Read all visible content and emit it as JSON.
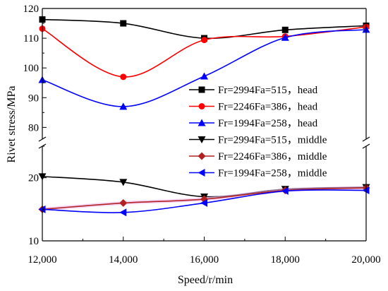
{
  "chart_data": {
    "type": "line",
    "title": "",
    "xlabel": "Speed/r/min",
    "ylabel": "Rivet stress/MPa",
    "x": [
      12000,
      14000,
      16000,
      18000,
      20000
    ],
    "x_tick_labels": [
      "12,000",
      "14,000",
      "16,000",
      "18,000",
      "20,000"
    ],
    "xlim": [
      12000,
      20000
    ],
    "y_axis_broken": true,
    "y_segments": [
      {
        "range": [
          10,
          25
        ],
        "ticks": [
          "10",
          "20"
        ]
      },
      {
        "range": [
          77,
          120
        ],
        "ticks": [
          "80",
          "90",
          "100",
          "110",
          "120"
        ]
      }
    ],
    "grid": false,
    "legend_position": "right",
    "series": [
      {
        "name": "Fr=2994Fa=515，head",
        "color": "#000000",
        "marker": "square",
        "values": [
          116.3,
          115.0,
          110.0,
          112.8,
          114.2
        ]
      },
      {
        "name": "Fr=2246Fa=386，head",
        "color": "#ff0000",
        "marker": "circle",
        "values": [
          113.2,
          97.0,
          109.4,
          110.6,
          113.8
        ]
      },
      {
        "name": "Fr=1994Fa=258，head",
        "color": "#0000ff",
        "marker": "triangle-up",
        "values": [
          96.0,
          87.0,
          97.2,
          110.2,
          112.9
        ]
      },
      {
        "name": "Fr=2994Fa=515，middle",
        "color": "#000000",
        "marker": "triangle-down",
        "values": [
          20.2,
          19.3,
          17.0,
          18.2,
          18.5
        ]
      },
      {
        "name": "Fr=2246Fa=386，middle",
        "color": "#b22222",
        "marker": "diamond",
        "values": [
          15.0,
          16.0,
          16.6,
          18.0,
          18.4
        ]
      },
      {
        "name": "Fr=1994Fa=258，middle",
        "color": "#0000ff",
        "marker": "triangle-left",
        "values": [
          15.0,
          14.5,
          16.0,
          17.9,
          18.0
        ]
      }
    ]
  }
}
